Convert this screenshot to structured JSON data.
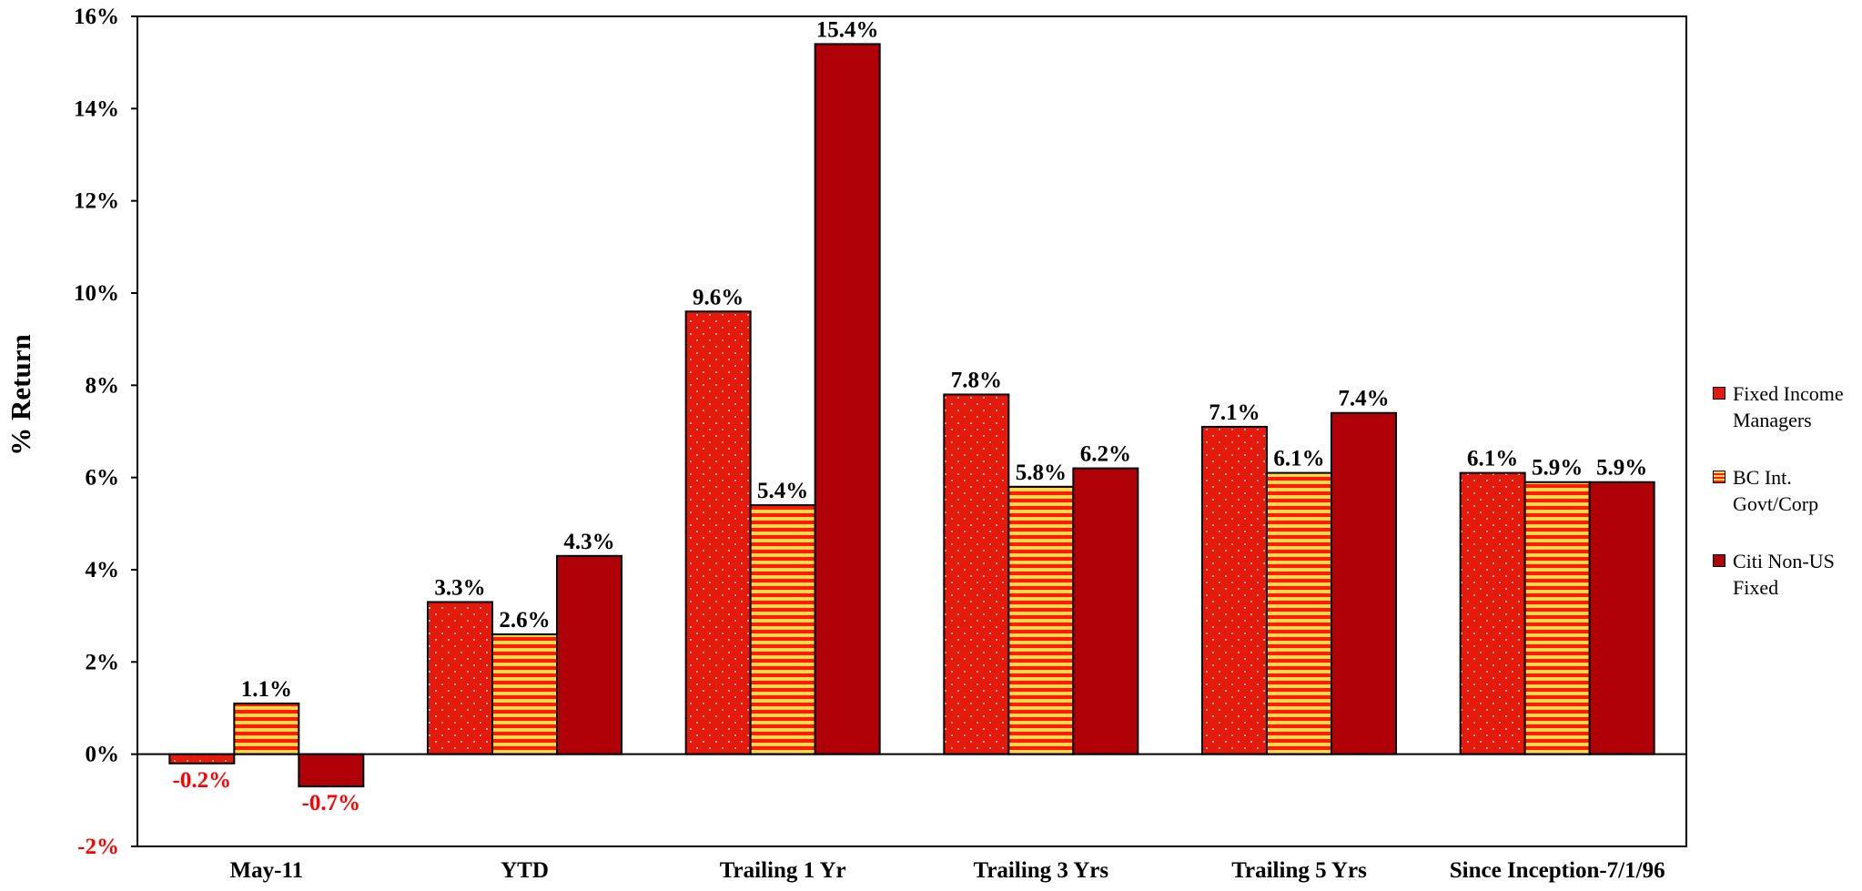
{
  "chart_data": {
    "type": "bar",
    "title": "",
    "xlabel": "",
    "ylabel": "% Return",
    "ylim": [
      -2,
      16
    ],
    "yticks": [
      -2,
      0,
      2,
      4,
      6,
      8,
      10,
      12,
      14,
      16
    ],
    "ytick_labels": [
      "-2%",
      "0%",
      "2%",
      "4%",
      "6%",
      "8%",
      "10%",
      "12%",
      "14%",
      "16%"
    ],
    "grid": false,
    "legend_position": "right",
    "categories": [
      "May-11",
      "YTD",
      "Trailing 1 Yr",
      "Trailing 3 Yrs",
      "Trailing 5 Yrs",
      "Since Inception-7/1/96"
    ],
    "series": [
      {
        "name": "Fixed Income Managers",
        "values": [
          -0.2,
          3.3,
          9.6,
          7.8,
          7.1,
          6.1
        ],
        "labels": [
          "-0.2%",
          "3.3%",
          "9.6%",
          "7.8%",
          "7.1%",
          "6.1%"
        ],
        "color": "#e41b0c",
        "pattern": "dots"
      },
      {
        "name": "BC Int. Govt/Corp",
        "values": [
          1.1,
          2.6,
          5.4,
          5.8,
          6.1,
          5.9
        ],
        "labels": [
          "1.1%",
          "2.6%",
          "5.4%",
          "5.8%",
          "6.1%",
          "5.9%"
        ],
        "color": "#ff1a00",
        "pattern": "horizontal-stripes",
        "stripe_color": "#ffd84a"
      },
      {
        "name": "Citi Non-US Fixed",
        "values": [
          -0.7,
          4.3,
          15.4,
          6.2,
          7.4,
          5.9
        ],
        "labels": [
          "-0.7%",
          "4.3%",
          "15.4%",
          "6.2%",
          "7.4%",
          "5.9%"
        ],
        "color": "#b00008",
        "pattern": "solid"
      }
    ],
    "negative_label_color": "#ff0000"
  },
  "legend": {
    "items": [
      {
        "label": "Fixed Income Managers"
      },
      {
        "label": "BC Int. Govt/Corp"
      },
      {
        "label": "Citi Non-US Fixed"
      }
    ]
  }
}
